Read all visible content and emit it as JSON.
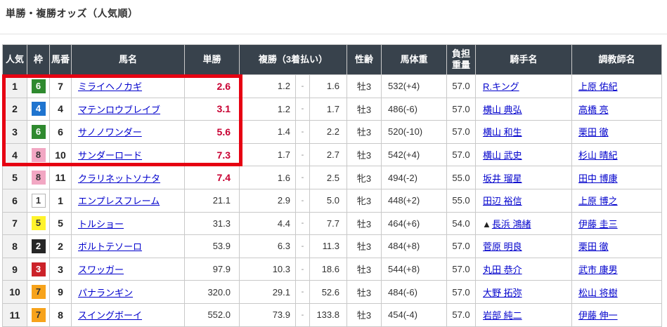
{
  "page_title": "単勝・複勝オッズ（人気順）",
  "colors": {
    "header_bg": "#38424c",
    "link": "#0000cc",
    "hot_odds": "#c80032",
    "highlight_border": "#e60012",
    "rank_col_bg": "#f1f1f1"
  },
  "frame_colors": {
    "1": {
      "bg": "#ffffff",
      "fg": "#333333",
      "border": "#b5b5b5"
    },
    "2": {
      "bg": "#262626",
      "fg": "#ffffff",
      "border": ""
    },
    "3": {
      "bg": "#cc2229",
      "fg": "#ffffff",
      "border": ""
    },
    "4": {
      "bg": "#1f74cf",
      "fg": "#ffffff",
      "border": ""
    },
    "5": {
      "bg": "#fff32b",
      "fg": "#333333",
      "border": ""
    },
    "6": {
      "bg": "#2f8a2f",
      "fg": "#ffffff",
      "border": ""
    },
    "7": {
      "bg": "#f7a31b",
      "fg": "#333333",
      "border": ""
    },
    "8": {
      "bg": "#f2a7c3",
      "fg": "#333333",
      "border": ""
    }
  },
  "table": {
    "headers": {
      "ninki": "人気",
      "waku": "枠",
      "umaban": "馬番",
      "bamei": "馬名",
      "tansho": "単勝",
      "fukusho": "複勝（3着払い）",
      "seirei": "性齢",
      "bataiju": "馬体重",
      "futan_top": "負担",
      "futan_bottom": "重量",
      "kishu": "騎手名",
      "chokyoshi": "調教師名"
    },
    "rows": [
      {
        "rank": "1",
        "frame": "6",
        "number": "7",
        "horse": "ミライヘノカギ",
        "win": "2.6",
        "win_hot": true,
        "place_low": "1.2",
        "place_dash": "-",
        "place_high": "1.6",
        "sex_age": "牡3",
        "weight": "532(+4)",
        "carried": "57.0",
        "jockey_mark": "",
        "jockey": "R.キング",
        "trainer": "上原 佑紀"
      },
      {
        "rank": "2",
        "frame": "4",
        "number": "4",
        "horse": "マテンロウブレイブ",
        "win": "3.1",
        "win_hot": true,
        "place_low": "1.2",
        "place_dash": "-",
        "place_high": "1.7",
        "sex_age": "牡3",
        "weight": "486(-6)",
        "carried": "57.0",
        "jockey_mark": "",
        "jockey": "横山 典弘",
        "trainer": "高橋 亮"
      },
      {
        "rank": "3",
        "frame": "6",
        "number": "6",
        "horse": "サノノワンダー",
        "win": "5.6",
        "win_hot": true,
        "place_low": "1.4",
        "place_dash": "-",
        "place_high": "2.2",
        "sex_age": "牡3",
        "weight": "520(-10)",
        "carried": "57.0",
        "jockey_mark": "",
        "jockey": "横山 和生",
        "trainer": "栗田 徹"
      },
      {
        "rank": "4",
        "frame": "8",
        "number": "10",
        "horse": "サンダーロード",
        "win": "7.3",
        "win_hot": true,
        "place_low": "1.7",
        "place_dash": "-",
        "place_high": "2.7",
        "sex_age": "牡3",
        "weight": "542(+4)",
        "carried": "57.0",
        "jockey_mark": "",
        "jockey": "横山 武史",
        "trainer": "杉山 晴紀"
      },
      {
        "rank": "5",
        "frame": "8",
        "number": "11",
        "horse": "クラリネットソナタ",
        "win": "7.4",
        "win_hot": true,
        "place_low": "1.6",
        "place_dash": "-",
        "place_high": "2.5",
        "sex_age": "牝3",
        "weight": "494(-2)",
        "carried": "55.0",
        "jockey_mark": "",
        "jockey": "坂井 瑠星",
        "trainer": "田中 博康"
      },
      {
        "rank": "6",
        "frame": "1",
        "number": "1",
        "horse": "エンプレスフレーム",
        "win": "21.1",
        "win_hot": false,
        "place_low": "2.9",
        "place_dash": "-",
        "place_high": "5.0",
        "sex_age": "牝3",
        "weight": "448(+2)",
        "carried": "55.0",
        "jockey_mark": "",
        "jockey": "田辺 裕信",
        "trainer": "上原 博之"
      },
      {
        "rank": "7",
        "frame": "5",
        "number": "5",
        "horse": "トルショー",
        "win": "31.3",
        "win_hot": false,
        "place_low": "4.4",
        "place_dash": "-",
        "place_high": "7.7",
        "sex_age": "牡3",
        "weight": "464(+6)",
        "carried": "54.0",
        "jockey_mark": "▲",
        "jockey": "長浜 鴻緒",
        "trainer": "伊藤 圭三"
      },
      {
        "rank": "8",
        "frame": "2",
        "number": "2",
        "horse": "ボルトテソーロ",
        "win": "53.9",
        "win_hot": false,
        "place_low": "6.3",
        "place_dash": "-",
        "place_high": "11.3",
        "sex_age": "牡3",
        "weight": "484(+8)",
        "carried": "57.0",
        "jockey_mark": "",
        "jockey": "菅原 明良",
        "trainer": "栗田 徹"
      },
      {
        "rank": "9",
        "frame": "3",
        "number": "3",
        "horse": "スワッガー",
        "win": "97.9",
        "win_hot": false,
        "place_low": "10.3",
        "place_dash": "-",
        "place_high": "18.6",
        "sex_age": "牡3",
        "weight": "544(+8)",
        "carried": "57.0",
        "jockey_mark": "",
        "jockey": "丸田 恭介",
        "trainer": "武市 康男"
      },
      {
        "rank": "10",
        "frame": "7",
        "number": "9",
        "horse": "パナランギン",
        "win": "320.0",
        "win_hot": false,
        "place_low": "29.1",
        "place_dash": "-",
        "place_high": "52.6",
        "sex_age": "牡3",
        "weight": "484(-6)",
        "carried": "57.0",
        "jockey_mark": "",
        "jockey": "大野 拓弥",
        "trainer": "松山 将樹"
      },
      {
        "rank": "11",
        "frame": "7",
        "number": "8",
        "horse": "スイングボーイ",
        "win": "552.0",
        "win_hot": false,
        "place_low": "73.9",
        "place_dash": "-",
        "place_high": "133.8",
        "sex_age": "牡3",
        "weight": "454(-4)",
        "carried": "57.0",
        "jockey_mark": "",
        "jockey": "岩部 純二",
        "trainer": "伊藤 伸一"
      }
    ]
  }
}
